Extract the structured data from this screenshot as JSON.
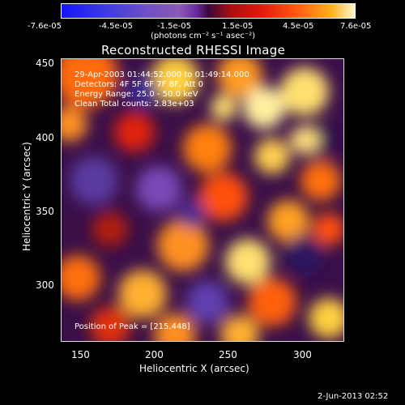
{
  "colorbar": {
    "ticks": [
      "-7.6e-05",
      "-4.5e-05",
      "-1.5e-05",
      "1.5e-05",
      "4.5e-05",
      "7.6e-05"
    ],
    "units": "(photons cm⁻² s⁻¹ asec⁻²)"
  },
  "title": "Reconstructed RHESSI Image",
  "annotations": {
    "time_range": "29-Apr-2003 01:44:52.000 to 01:49:14.000",
    "detectors": "Detectors: 4F 5F 6F 7F 8F, Att 0",
    "energy": "Energy Range: 25.0 - 50.0 keV",
    "clean": "Clean    Total counts: 2.83e+03",
    "peak": "Position of Peak = [215,448]"
  },
  "axes": {
    "xlabel": "Heliocentric X (arcsec)",
    "ylabel": "Heliocentric Y (arcsec)",
    "xticks": [
      "150",
      "200",
      "250",
      "300"
    ],
    "yticks": [
      "450",
      "400",
      "350",
      "300"
    ]
  },
  "datestamp": "2-Jun-2013 02:52",
  "colors": {
    "background": "#000000",
    "colormap_low": "#1414ff",
    "colormap_mid": "#3a0a3a",
    "colormap_high": "#fff8d0"
  }
}
